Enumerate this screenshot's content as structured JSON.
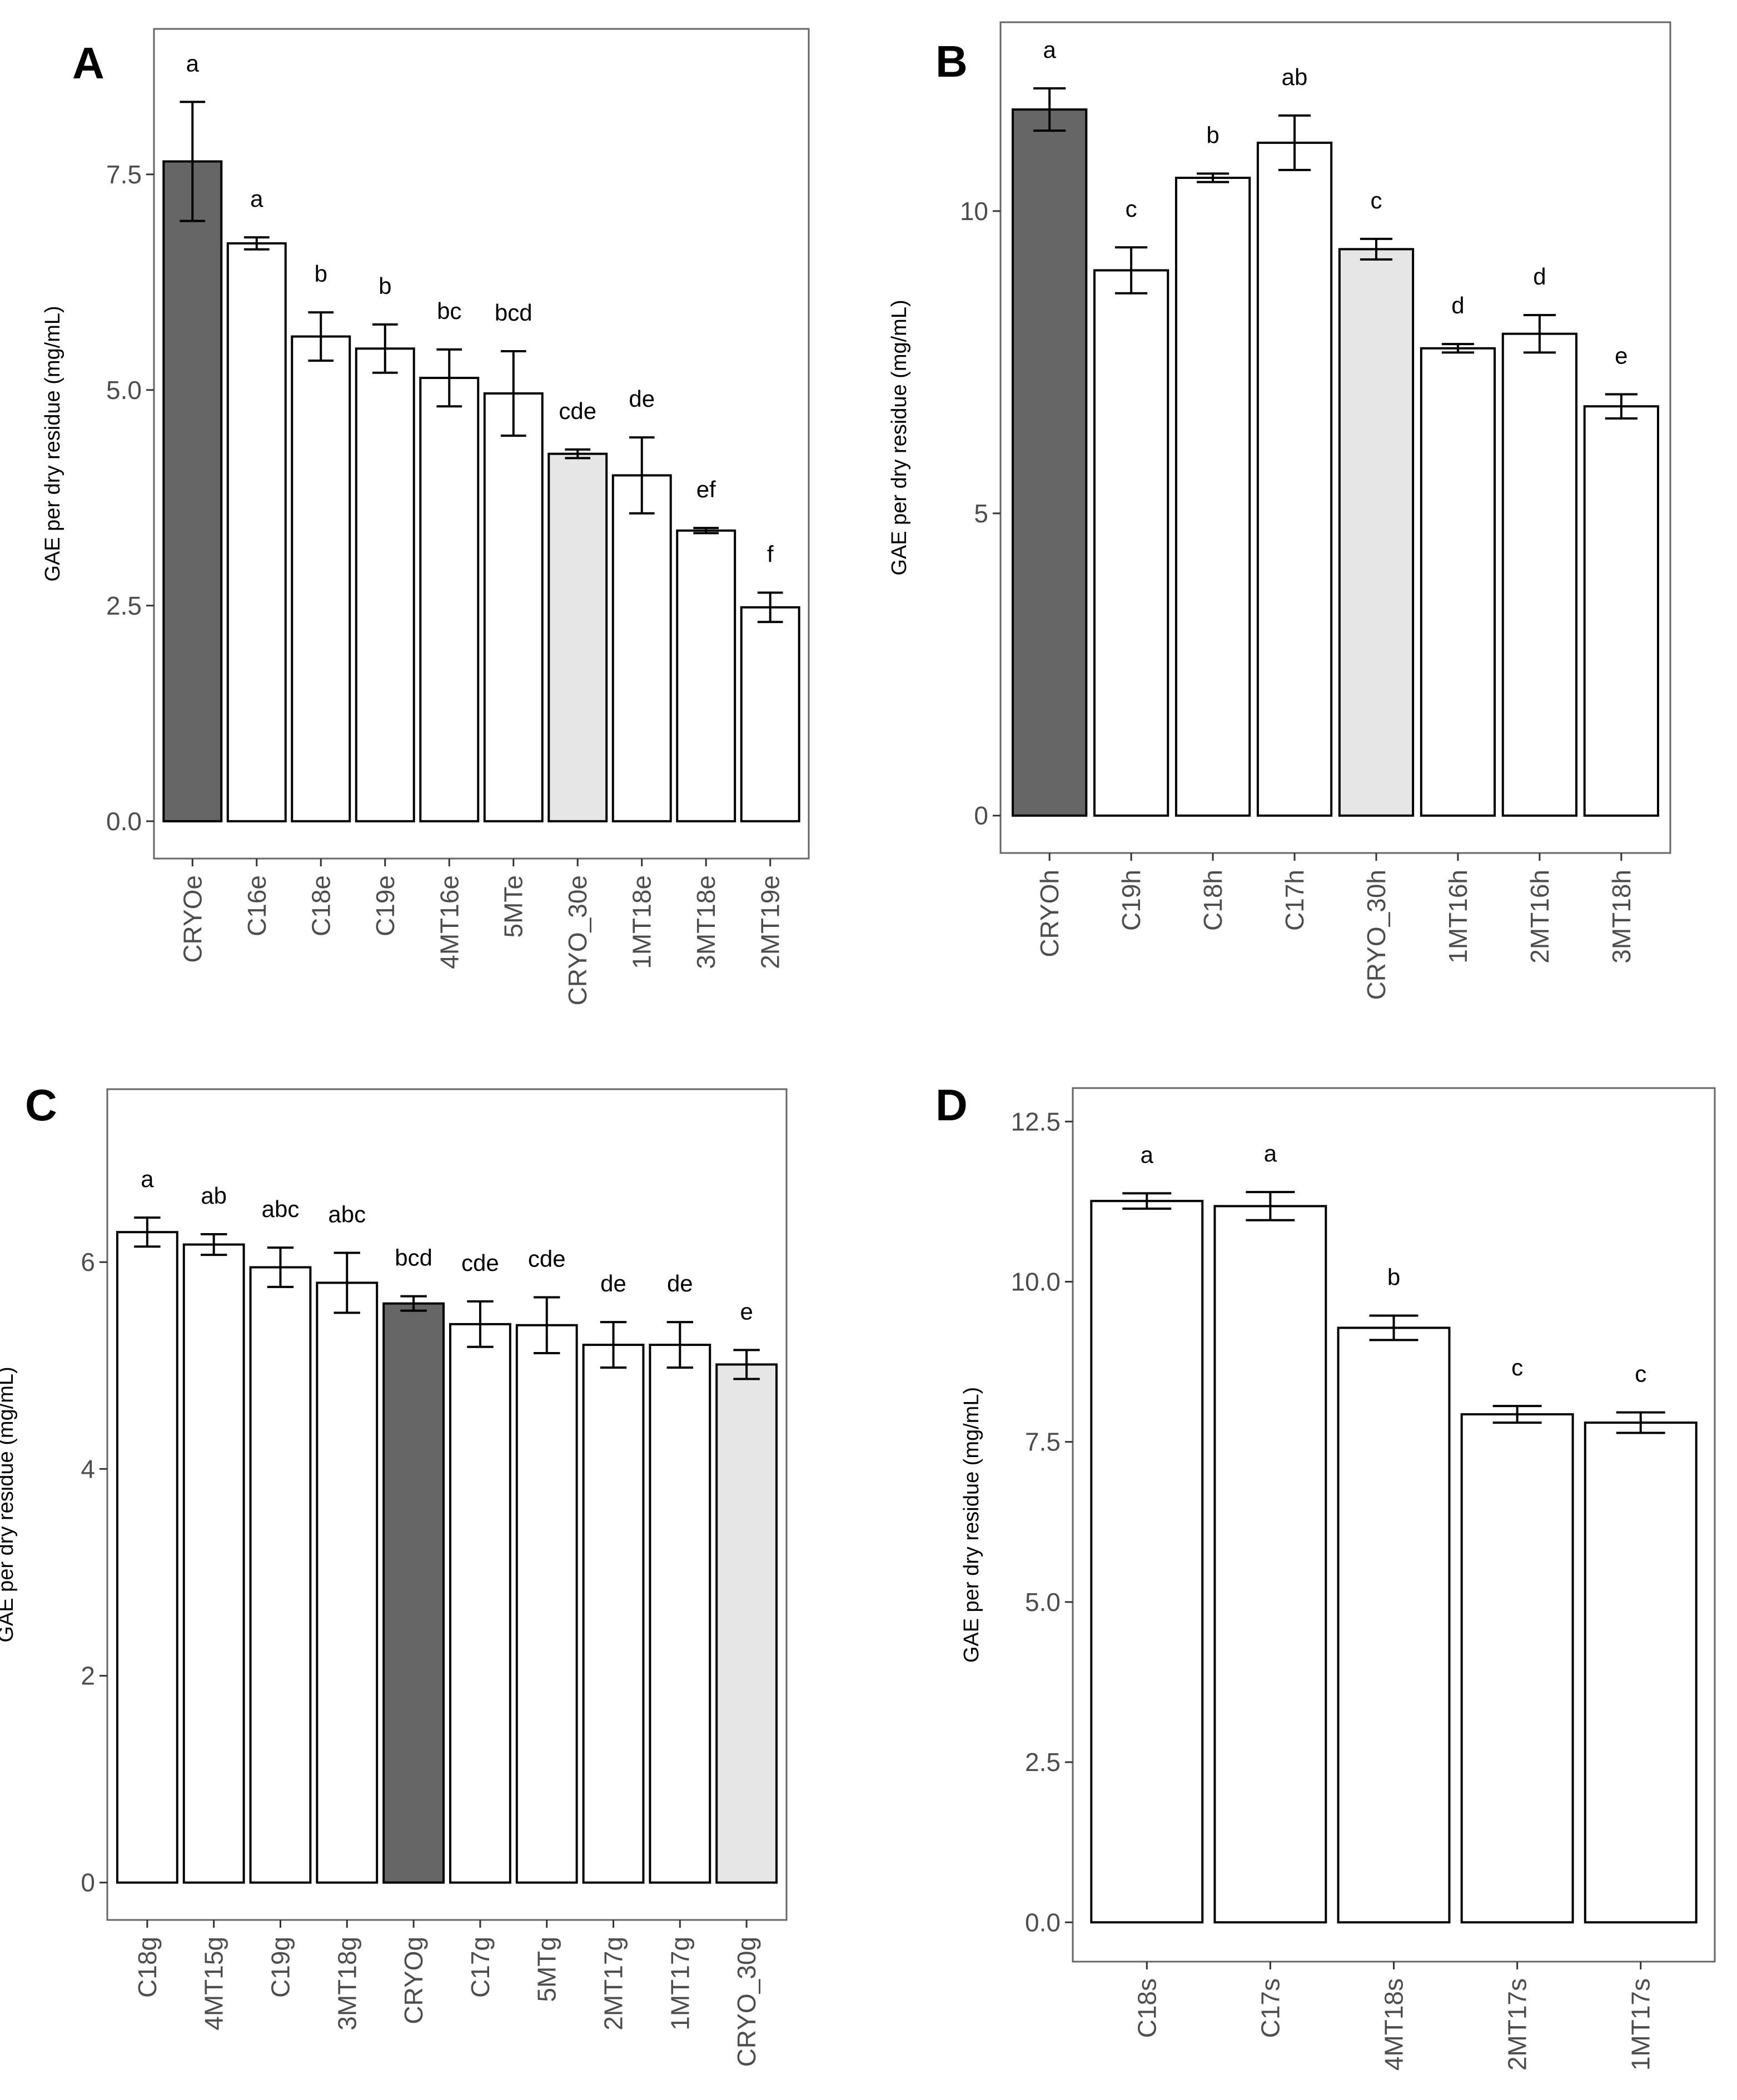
{
  "colors": {
    "dark": "#666666",
    "light": "#e6e6e6",
    "white": "#ffffff"
  },
  "chart_data": [
    {
      "panel": "A",
      "type": "bar",
      "ylabel": "GAE per dry residue (mg/mL)",
      "ylim": [
        0,
        9.1
      ],
      "yticks": [
        0.0,
        2.5,
        5.0,
        7.5
      ],
      "ytick_labels": [
        "0.0",
        "2.5",
        "5.0",
        "7.5"
      ],
      "categories": [
        "CRYOe",
        "C16e",
        "C18e",
        "C19e",
        "4MT16e",
        "5MTe",
        "CRYO_30e",
        "1MT18e",
        "3MT18e",
        "2MT19e"
      ],
      "values": [
        7.65,
        6.7,
        5.62,
        5.48,
        5.14,
        4.96,
        4.26,
        4.01,
        3.37,
        2.48
      ],
      "errors": [
        0.69,
        0.07,
        0.28,
        0.28,
        0.33,
        0.49,
        0.05,
        0.44,
        0.03,
        0.17
      ],
      "fills": [
        "dark",
        "white",
        "white",
        "white",
        "white",
        "white",
        "light",
        "white",
        "white",
        "white"
      ],
      "letters": [
        "a",
        "a",
        "b",
        "b",
        "bc",
        "bcd",
        "cde",
        "de",
        "ef",
        "f"
      ]
    },
    {
      "panel": "B",
      "type": "bar",
      "ylabel": "GAE per dry residue (mg/mL)",
      "ylim": [
        0,
        13.0
      ],
      "yticks": [
        0,
        5,
        10
      ],
      "ytick_labels": [
        "0",
        "5",
        "10"
      ],
      "categories": [
        "CRYOh",
        "C19h",
        "C18h",
        "C17h",
        "CRYO_30h",
        "1MT16h",
        "2MT16h",
        "3MT18h"
      ],
      "values": [
        11.68,
        9.02,
        10.55,
        11.13,
        9.37,
        7.73,
        7.97,
        6.77
      ],
      "errors": [
        0.35,
        0.38,
        0.07,
        0.45,
        0.17,
        0.07,
        0.31,
        0.2
      ],
      "fills": [
        "dark",
        "white",
        "white",
        "white",
        "light",
        "white",
        "white",
        "white"
      ],
      "letters": [
        "a",
        "c",
        "b",
        "ab",
        "c",
        "d",
        "d",
        "e"
      ]
    },
    {
      "panel": "C",
      "type": "bar",
      "ylabel": "GAE per dry residue (mg/mL)",
      "ylim": [
        0,
        7.6
      ],
      "yticks": [
        0,
        2,
        4,
        6
      ],
      "ytick_labels": [
        "0",
        "2",
        "4",
        "6"
      ],
      "categories": [
        "C18g",
        "4MT15g",
        "C19g",
        "3MT18g",
        "CRYOg",
        "C17g",
        "5MTg",
        "2MT17g",
        "1MT17g",
        "CRYO_30g"
      ],
      "values": [
        6.29,
        6.17,
        5.95,
        5.8,
        5.6,
        5.4,
        5.39,
        5.2,
        5.2,
        5.01
      ],
      "errors": [
        0.14,
        0.1,
        0.19,
        0.29,
        0.07,
        0.22,
        0.27,
        0.22,
        0.22,
        0.14
      ],
      "fills": [
        "white",
        "white",
        "white",
        "white",
        "dark",
        "white",
        "white",
        "white",
        "white",
        "light"
      ],
      "letters": [
        "a",
        "ab",
        "abc",
        "abc",
        "bcd",
        "cde",
        "cde",
        "de",
        "de",
        "e"
      ]
    },
    {
      "panel": "D",
      "type": "bar",
      "ylabel": "GAE per dry residue (mg/mL)",
      "ylim": [
        0,
        12.9
      ],
      "yticks": [
        0.0,
        2.5,
        5.0,
        7.5,
        10.0,
        12.5
      ],
      "ytick_labels": [
        "0.0",
        "2.5",
        "5.0",
        "7.5",
        "10.0",
        "12.5"
      ],
      "categories": [
        "C18s",
        "C17s",
        "4MT18s",
        "2MT17s",
        "1MT17s"
      ],
      "values": [
        11.26,
        11.18,
        9.28,
        7.93,
        7.8
      ],
      "errors": [
        0.12,
        0.22,
        0.19,
        0.13,
        0.16
      ],
      "fills": [
        "white",
        "white",
        "white",
        "white",
        "white"
      ],
      "letters": [
        "a",
        "a",
        "b",
        "c",
        "c"
      ]
    }
  ]
}
